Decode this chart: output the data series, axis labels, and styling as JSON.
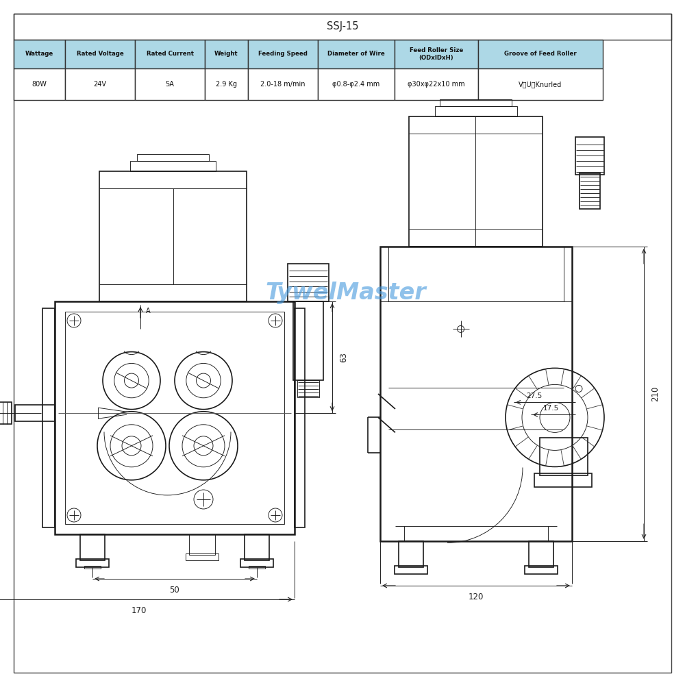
{
  "title": "SSJ-15",
  "bg_color": "#ffffff",
  "table_header_bg": "#add8e6",
  "table_border_color": "#333333",
  "headers": [
    "Wattage",
    "Rated Voltage",
    "Rated Current",
    "Weight",
    "Feeding Speed",
    "Diameter of Wire",
    "Feed Roller Size\n(ODxlDxH)",
    "Groove of Feed Roller"
  ],
  "values": [
    "80W",
    "24V",
    "5A",
    "2.9 Kg",
    "2.0-18 m/min",
    "φ0.8-φ2.4 mm",
    "φ30xφ22x10 mm",
    "V、U、Knurled"
  ],
  "watermark": "TywelMaster",
  "watermark_color": "#4499dd",
  "dim_color": "#222222",
  "drawing_color": "#1a1a1a",
  "dim_50": "50",
  "dim_170": "170",
  "dim_63": "63",
  "dim_120": "120",
  "dim_210": "210",
  "dim_27_5": "27.5",
  "dim_17_5": "17.5"
}
